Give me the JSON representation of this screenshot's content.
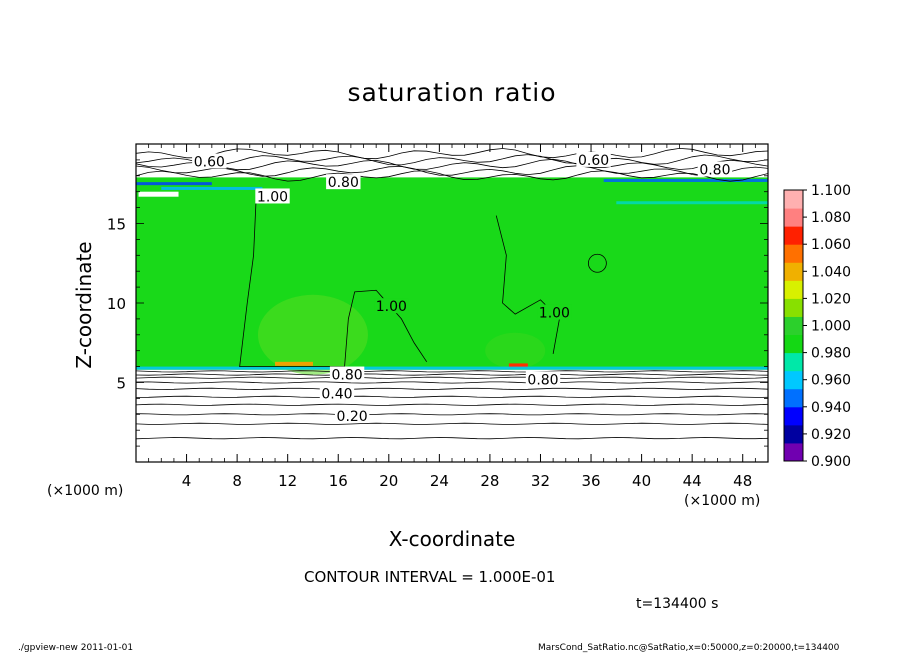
{
  "header": {
    "title": "saturation ratio",
    "contour_interval": "CONTOUR INTERVAL = 1.000E-01",
    "time_label": "t=134400 s"
  },
  "footer": {
    "program": "./gpview-new   2011-01-01",
    "source": "MarsCond_SatRatio.nc@SatRatio,x=0:50000,z=0:20000,t=134400"
  },
  "colors": {
    "fill_main": "#19d919",
    "legend": [
      "#7000b0",
      "#0000a0",
      "#0000ff",
      "#0070ff",
      "#00c8ff",
      "#00e8a8",
      "#14d814",
      "#2cd02c",
      "#88e000",
      "#d8f000",
      "#f0b000",
      "#ff7000",
      "#ff2000",
      "#ff8080",
      "#ffb0b0"
    ]
  },
  "chart_data": {
    "type": "heatmap",
    "title": "saturation ratio",
    "xlabel": "X-coordinate",
    "ylabel": "Z-coordinate",
    "x_unit": "(×1000 m)",
    "x_ticks": [
      4,
      8,
      12,
      16,
      20,
      24,
      28,
      32,
      36,
      40,
      44,
      48
    ],
    "y_ticks": [
      5,
      10,
      15
    ],
    "xlim": [
      0,
      50
    ],
    "ylim": [
      0,
      20
    ],
    "colorbar_ticks": [
      "0.900",
      "0.920",
      "0.940",
      "0.960",
      "0.980",
      "1.000",
      "1.020",
      "1.040",
      "1.060",
      "1.080",
      "1.100"
    ],
    "contour_labels": [
      {
        "text": "0.60",
        "x": 5.8,
        "z": 18.9
      },
      {
        "text": "0.60",
        "x": 36.2,
        "z": 19.0
      },
      {
        "text": "0.80",
        "x": 45.8,
        "z": 18.4
      },
      {
        "text": "0.80",
        "x": 16.4,
        "z": 17.6
      },
      {
        "text": "1.00",
        "x": 10.8,
        "z": 16.7
      },
      {
        "text": "1.00",
        "x": 20.2,
        "z": 9.8
      },
      {
        "text": "1.00",
        "x": 33.1,
        "z": 9.4
      },
      {
        "text": "0.80",
        "x": 16.7,
        "z": 5.5
      },
      {
        "text": "0.80",
        "x": 32.2,
        "z": 5.2
      },
      {
        "text": "0.40",
        "x": 15.9,
        "z": 4.3
      },
      {
        "text": "0.20",
        "x": 17.1,
        "z": 2.9
      }
    ]
  }
}
